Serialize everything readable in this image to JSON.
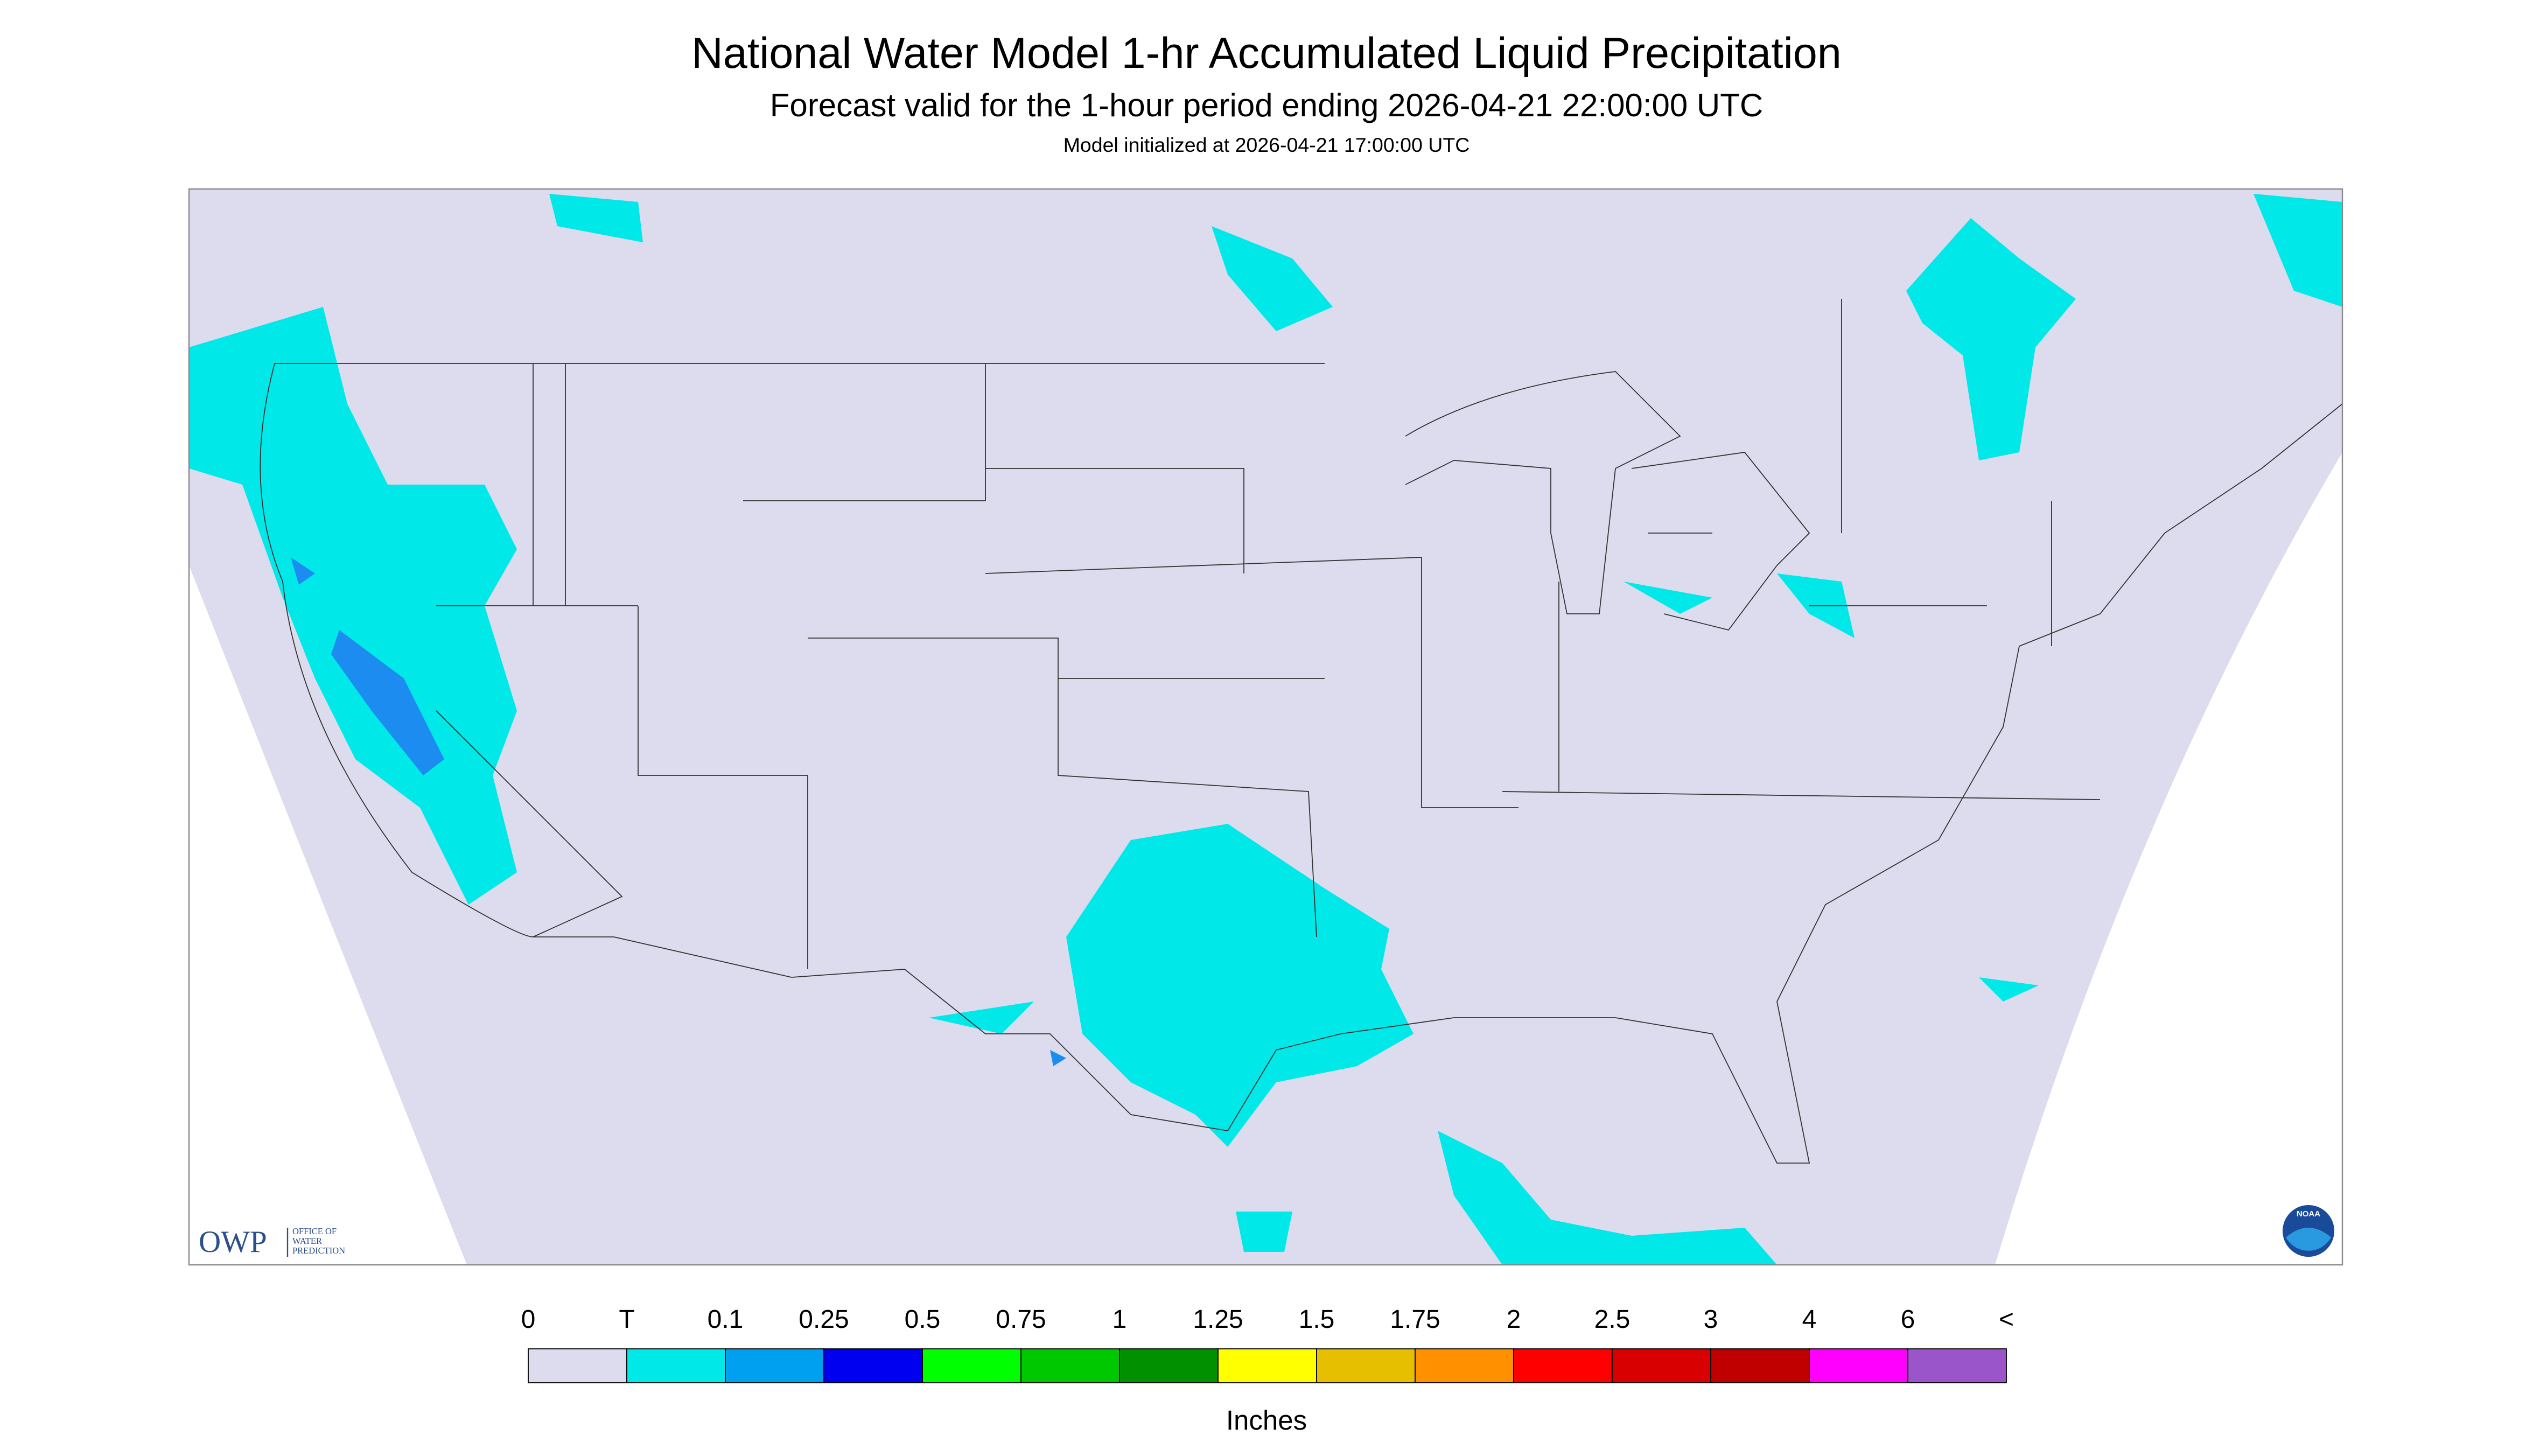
{
  "header": {
    "title": "National Water Model 1-hr Accumulated Liquid Precipitation",
    "subtitle": "Forecast valid for the 1-hour period ending 2026-04-21 22:00:00 UTC",
    "note": "Model initialized at 2026-04-21 17:00:00 UTC"
  },
  "logos": {
    "owp": "OWP",
    "owp_name": [
      "OFFICE OF",
      "WATER",
      "PREDICTION"
    ],
    "noaa": "NOAA"
  },
  "legend": {
    "labels": [
      "0",
      "T",
      "0.1",
      "0.25",
      "0.5",
      "0.75",
      "1",
      "1.25",
      "1.5",
      "1.75",
      "2",
      "2.5",
      "3",
      "4",
      "6",
      "<"
    ],
    "colors": [
      "#dcdcee",
      "#00e8e8",
      "#00a0f0",
      "#0000f0",
      "#00ff00",
      "#00c800",
      "#009000",
      "#ffff00",
      "#e6c000",
      "#ff9000",
      "#ff0000",
      "#d80000",
      "#c00000",
      "#ff00ff",
      "#9955c9"
    ],
    "unit": "Inches"
  }
}
